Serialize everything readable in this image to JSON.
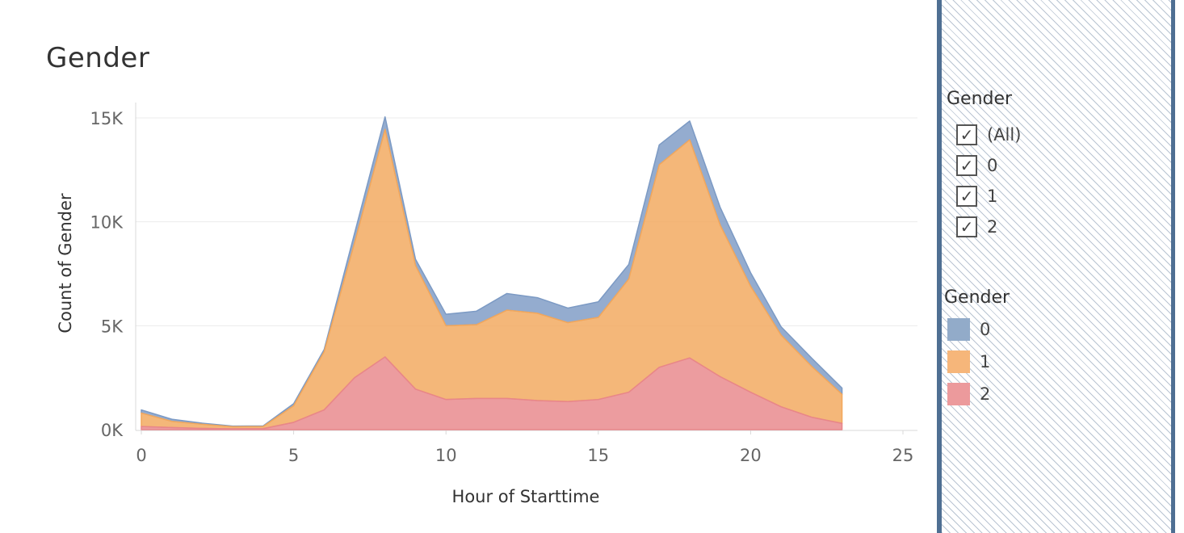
{
  "title": "Gender",
  "chart_data": {
    "type": "area",
    "stacked": true,
    "xlabel": "Hour of Starttime",
    "ylabel": "Count of Gender",
    "xlim": [
      0,
      25
    ],
    "ylim": [
      0,
      15000
    ],
    "x_ticks": [
      0,
      5,
      10,
      15,
      20,
      25
    ],
    "y_ticks": [
      0,
      5000,
      10000,
      15000
    ],
    "x_tick_labels": [
      "0",
      "5",
      "10",
      "15",
      "20",
      "25"
    ],
    "y_tick_labels": [
      "0K",
      "5K",
      "10K",
      "15K"
    ],
    "grid": "horizontal",
    "legend_position": "right",
    "x": [
      0,
      1,
      2,
      3,
      4,
      5,
      6,
      7,
      8,
      9,
      10,
      11,
      12,
      13,
      14,
      15,
      16,
      17,
      18,
      19,
      20,
      21,
      22,
      23
    ],
    "series": [
      {
        "name": "2",
        "color": "#e8868a",
        "values": [
          150,
          100,
          60,
          40,
          50,
          350,
          950,
          2500,
          3500,
          1950,
          1450,
          1500,
          1500,
          1400,
          1350,
          1450,
          1800,
          3000,
          3450,
          2550,
          1800,
          1100,
          600,
          300
        ]
      },
      {
        "name": "1",
        "color": "#f2a75c",
        "values": [
          650,
          300,
          200,
          100,
          100,
          800,
          2800,
          6500,
          10950,
          5950,
          3550,
          3550,
          4250,
          4200,
          3800,
          3950,
          5450,
          9750,
          10500,
          7300,
          5100,
          3450,
          2450,
          1400
        ]
      },
      {
        "name": "0",
        "color": "#7c9ac4",
        "values": [
          150,
          100,
          50,
          30,
          30,
          100,
          100,
          450,
          600,
          300,
          550,
          650,
          800,
          750,
          700,
          750,
          700,
          950,
          900,
          850,
          650,
          400,
          400,
          300
        ]
      }
    ]
  },
  "filter": {
    "title": "Gender",
    "items": [
      {
        "label": "(All)",
        "checked": "✓"
      },
      {
        "label": "0",
        "checked": "✓"
      },
      {
        "label": "1",
        "checked": "✓"
      },
      {
        "label": "2",
        "checked": "✓"
      }
    ]
  },
  "legend": {
    "title": "Gender",
    "items": [
      {
        "label": "0",
        "color": "#92abc9"
      },
      {
        "label": "1",
        "color": "#f6b67a"
      },
      {
        "label": "2",
        "color": "#ec9a9c"
      }
    ]
  }
}
